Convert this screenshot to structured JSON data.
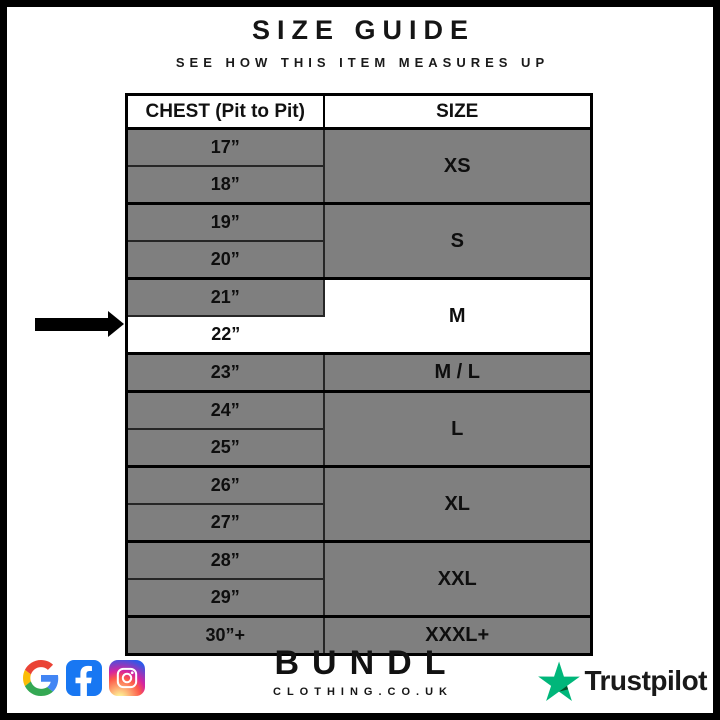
{
  "header": {
    "title": "SIZE GUIDE",
    "subtitle": "SEE HOW THIS ITEM MEASURES UP"
  },
  "table": {
    "columns": [
      "CHEST (Pit to Pit)",
      "SIZE"
    ],
    "groups": [
      {
        "size": "XS",
        "measurements": [
          "17”",
          "18”"
        ]
      },
      {
        "size": "S",
        "measurements": [
          "19”",
          "20”"
        ]
      },
      {
        "size": "M",
        "measurements": [
          "21”",
          "22”"
        ],
        "highlighted": true,
        "highlighted_measurement": "22”"
      },
      {
        "size": "M / L",
        "measurements": [
          "23”"
        ]
      },
      {
        "size": "L",
        "measurements": [
          "24”",
          "25”"
        ]
      },
      {
        "size": "XL",
        "measurements": [
          "26”",
          "27”"
        ]
      },
      {
        "size": "XXL",
        "measurements": [
          "28”",
          "29”"
        ]
      },
      {
        "size": "XXXL+",
        "measurements": [
          "30”+"
        ]
      }
    ]
  },
  "chart_data": {
    "type": "table",
    "title": "SIZE GUIDE",
    "subtitle": "SEE HOW THIS ITEM MEASURES UP",
    "columns": [
      "CHEST (Pit to Pit)",
      "SIZE"
    ],
    "rows": [
      [
        "17”",
        "XS"
      ],
      [
        "18”",
        "XS"
      ],
      [
        "19”",
        "S"
      ],
      [
        "20”",
        "S"
      ],
      [
        "21”",
        "M"
      ],
      [
        "22”",
        "M"
      ],
      [
        "23”",
        "M / L"
      ],
      [
        "24”",
        "L"
      ],
      [
        "25”",
        "L"
      ],
      [
        "26”",
        "XL"
      ],
      [
        "27”",
        "XL"
      ],
      [
        "28”",
        "XXL"
      ],
      [
        "29”",
        "XXL"
      ],
      [
        "30”+",
        "XXXL+"
      ]
    ],
    "highlighted_row": [
      "22”",
      "M"
    ],
    "layout": "size cells merged across their measurement rows; 21”/22”/M block shown white with black arrow marker at 22”"
  },
  "arrow": {
    "points_to": "22”"
  },
  "footer": {
    "brand_name": "BUNDL",
    "brand_domain": "CLOTHING.CO.UK",
    "trustpilot_label": "Trustpilot",
    "social_icons": [
      "google",
      "facebook",
      "instagram"
    ]
  },
  "colors": {
    "row_gray": "#7f7f7f",
    "highlight_white": "#ffffff",
    "border_black": "#000000",
    "facebook_blue": "#1877F2",
    "trustpilot_green": "#00B67A",
    "trustpilot_dark_green": "#005128"
  }
}
